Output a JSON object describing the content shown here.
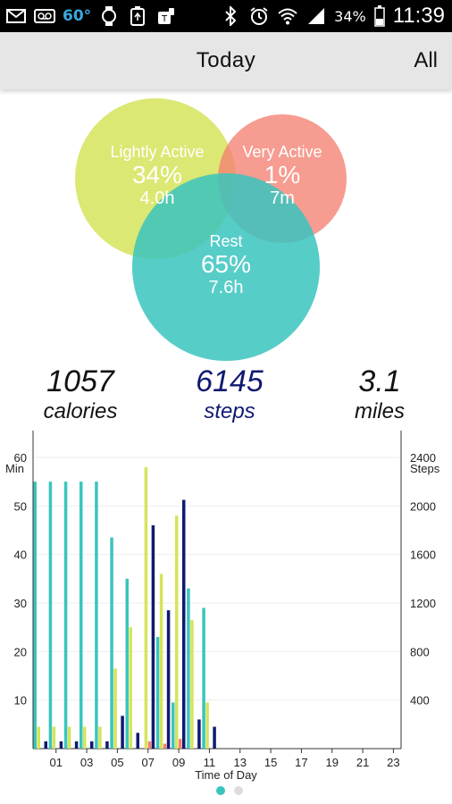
{
  "status_bar": {
    "temperature": "60°",
    "battery": "34%",
    "time": "11:39",
    "icons_left": [
      "mail-icon",
      "voicemail-icon",
      "watch-icon",
      "recycle-icon",
      "tmobile-icon"
    ],
    "icons_right": [
      "bluetooth-icon",
      "alarm-icon",
      "wifi-icon",
      "signal-icon",
      "battery-icon"
    ]
  },
  "header": {
    "title": "Today",
    "all_label": "All"
  },
  "activity": {
    "lightly_active": {
      "label": "Lightly Active",
      "percent": "34%",
      "duration": "4.0h",
      "color": "#d5e45a"
    },
    "very_active": {
      "label": "Very Active",
      "percent": "1%",
      "duration": "7m",
      "color": "#f48072"
    },
    "rest": {
      "label": "Rest",
      "percent": "65%",
      "duration": "7.6h",
      "color": "#3ac4be"
    }
  },
  "stats": {
    "calories": {
      "value": "1057",
      "unit": "calories"
    },
    "steps": {
      "value": "6145",
      "unit": "steps"
    },
    "miles": {
      "value": "3.1",
      "unit": "miles"
    }
  },
  "chart_data": {
    "type": "bar",
    "xlabel": "Time of Day",
    "ylabel_left": "Min",
    "ylabel_right": "Steps",
    "x_ticks": [
      "01",
      "03",
      "05",
      "07",
      "09",
      "11",
      "13",
      "15",
      "17",
      "19",
      "21",
      "23"
    ],
    "y_left_ticks": [
      10,
      20,
      30,
      40,
      50,
      60
    ],
    "y_right_ticks": [
      400,
      800,
      1200,
      1600,
      2000,
      2400
    ],
    "ylim_left": [
      0,
      60
    ],
    "ylim_right": [
      0,
      2400
    ],
    "hours": [
      0,
      1,
      2,
      3,
      4,
      5,
      6,
      7,
      8,
      9,
      10,
      11
    ],
    "series": [
      {
        "name": "Rest",
        "axis": "left",
        "color": "#3ac4be",
        "values": [
          55,
          55,
          55,
          55,
          55,
          43.5,
          35,
          0,
          23,
          9.5,
          33,
          29
        ]
      },
      {
        "name": "Lightly Active",
        "axis": "left",
        "color": "#d5e45a",
        "values": [
          4.5,
          4.5,
          4.5,
          4.5,
          4.5,
          16.5,
          25,
          58,
          36,
          48,
          26.5,
          9.5
        ]
      },
      {
        "name": "Very Active",
        "axis": "left",
        "color": "#f48072",
        "values": [
          0,
          0,
          0,
          0,
          0,
          0,
          0,
          1.5,
          1,
          2,
          0,
          0
        ]
      },
      {
        "name": "Steps",
        "axis": "right",
        "color": "#101a70",
        "values": [
          60,
          60,
          60,
          60,
          60,
          270,
          130,
          1840,
          1140,
          2050,
          240,
          180
        ]
      }
    ],
    "grid": true
  },
  "page_indicator": {
    "count": 2,
    "active": 0,
    "active_color": "#3ac4be",
    "inactive_color": "#dddddd"
  }
}
